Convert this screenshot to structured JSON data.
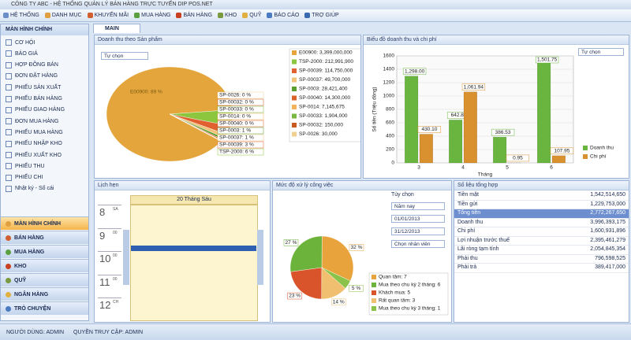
{
  "window": {
    "title": "CÔNG TY ABC - HỆ THỐNG QUẢN LÝ BÁN HÀNG TRỰC TUYẾN DIP POS.NET"
  },
  "menu": [
    "HỆ THỐNG",
    "DANH MỤC",
    "KHUYẾN MÃI",
    "MUA HÀNG",
    "BÁN HÀNG",
    "KHO",
    "QUỸ",
    "BÁO CÁO",
    "TRỢ GIÚP"
  ],
  "sidebar": {
    "header": "MÀN HÌNH CHÍNH",
    "items": [
      "CƠ HỘI",
      "BÁO GIÁ",
      "HỢP ĐỒNG BÁN",
      "ĐƠN ĐẶT HÀNG",
      "PHIẾU SẢN XUẤT",
      "PHIẾU BÁN HÀNG",
      "PHIẾU GIAO HÀNG",
      "ĐƠN MUA HÀNG",
      "PHIẾU MUA HÀNG",
      "PHIẾU NHẬP KHO",
      "PHIẾU XUẤT KHO",
      "PHIẾU THU",
      "PHIẾU CHI",
      "Nhật ký - Sổ cái"
    ],
    "nav": [
      "MÀN HÌNH CHÍNH",
      "BÁN HÀNG",
      "MUA HÀNG",
      "KHO",
      "QUỸ",
      "NGÂN HÀNG",
      "TRÒ CHUYỆN"
    ]
  },
  "tab": "MAIN",
  "chart_data": [
    {
      "type": "pie",
      "title": "Doanh thu theo Sản phẩm",
      "dropdown": "Tự chọn",
      "categories": [
        "E00900: 3,399,000,000",
        "TSP-2000: 212,991,900",
        "SP-00039: 114,750,000",
        "SP-00037: 49,700,000",
        "SP-0003: 28,421,400",
        "SP-00040: 14,300,000",
        "SP-0014: 7,145,675",
        "SP-00033: 1,904,000",
        "SP-00032: 150,000",
        "SP-0026: 30,000"
      ],
      "values": [
        3399000000,
        212991900,
        114750000,
        49700000,
        28421400,
        14300000,
        7145675,
        1904000,
        150000,
        30000
      ],
      "slice_labels": [
        "E00900: 89 %",
        "TSP-2000: 6 %",
        "SP-00039: 3 %",
        "SP-00037: 1 %",
        "SP-0003: 1 %",
        "SP-00040: 0 %",
        "SP-0014: 0 %",
        "SP-00033: 0 %",
        "SP-00032: 0 %",
        "SP-0026: 0 %"
      ],
      "colors": [
        "#e3a53c",
        "#8cc63f",
        "#e06030",
        "#f0c27a",
        "#5a9e2f",
        "#d9622b",
        "#f2b35c",
        "#78b843",
        "#c85a20",
        "#f0d090"
      ]
    },
    {
      "type": "bar",
      "title": "Biểu đồ doanh thu và chi phí",
      "dropdown": "Tự chọn",
      "categories": [
        "3",
        "4",
        "5",
        "6"
      ],
      "x_label": "Tháng",
      "y_label": "Số tiền (Triệu đồng)",
      "ylim": [
        0,
        1600
      ],
      "yticks": [
        0,
        200,
        400,
        600,
        800,
        1000,
        1200,
        1400,
        1600
      ],
      "grid": true,
      "series": [
        {
          "name": "Doanh thu",
          "color": "#6ab540",
          "values": [
            1298.0,
            642.87,
            386.53,
            1501.75
          ],
          "value_labels": [
            "1,298.00",
            "642.87",
            "386.53",
            "1,501.75"
          ]
        },
        {
          "name": "Chi phí",
          "color": "#d9902e",
          "values": [
            430.1,
            1061.94,
            0.95,
            107.95
          ],
          "value_labels": [
            "430.10",
            "1,061.94",
            "0.95",
            "107.95"
          ]
        }
      ]
    },
    {
      "type": "pie",
      "title": "Mức độ xử lý công việc",
      "filter_label": "Tùy chọn",
      "filters": [
        "Năm nay",
        "01/01/2013",
        "31/12/2013",
        "Chọn nhân viên"
      ],
      "categories": [
        "Quan tâm: 7",
        "Mua theo chu kỳ 2 tháng: 6",
        "Khách mua: 5",
        "Rất quan tâm: 3",
        "Mua theo chu kỳ 3 tháng: 1"
      ],
      "values": [
        7,
        6,
        5,
        3,
        1
      ],
      "slice_labels": [
        "32 %",
        "27 %",
        "23 %",
        "14 %",
        "5 %"
      ],
      "colors": [
        "#e8a33c",
        "#6bb33a",
        "#d9542a",
        "#f0c070",
        "#8bc34a"
      ]
    }
  ],
  "calendar": {
    "title": "Lịch hẹn",
    "day": "20 Tháng Sáu",
    "hours": [
      "8",
      "9",
      "10",
      "11",
      "12"
    ],
    "suffixes": [
      "SA",
      "00",
      "00",
      "00",
      "CH"
    ]
  },
  "summary": {
    "title": "Số liệu tổng hợp",
    "selected_row": 2,
    "rows": [
      [
        "Tiền mặt",
        "1,542,514,650"
      ],
      [
        "Tiền gửi",
        "1,229,753,000"
      ],
      [
        "Tổng tiền",
        "2,772,267,650"
      ],
      [
        "Doanh thu",
        "3,996,393,175"
      ],
      [
        "Chi phí",
        "1,600,931,896"
      ],
      [
        "Lợi nhuận trước thuế",
        "2,395,461,279"
      ],
      [
        "Lãi ròng tạm tính",
        "2,054,845,354"
      ],
      [
        "Phải thu",
        "796,598,525"
      ],
      [
        "Phải trả",
        "389,417,000"
      ]
    ]
  },
  "status": [
    "NGƯỜI DÙNG: ADMIN",
    "QUYỀN TRUY CẬP: ADMIN"
  ]
}
